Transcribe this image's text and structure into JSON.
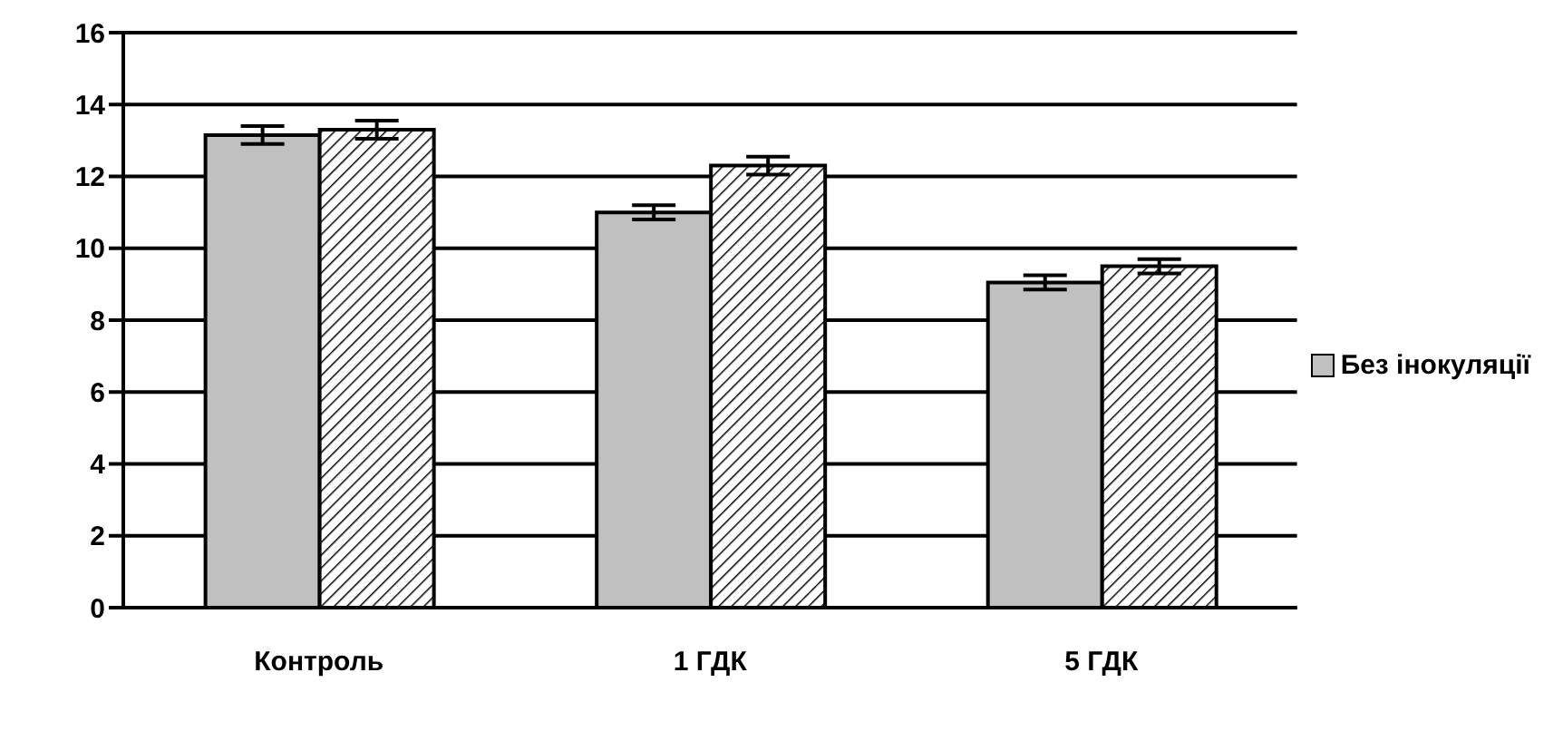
{
  "chart_data": {
    "type": "bar",
    "categories": [
      "Контроль",
      "1 ГДК",
      "5 ГДК"
    ],
    "series": [
      {
        "name": "Без інокуляції",
        "color": "#c0c0c0",
        "values": [
          13.15,
          11.0,
          9.05
        ],
        "errors": [
          0.25,
          0.2,
          0.2
        ]
      },
      {
        "color": "#000000",
        "values": [
          13.3,
          12.3,
          9.5
        ],
        "errors": [
          0.25,
          0.25,
          0.2
        ]
      }
    ],
    "ylim": [
      0,
      16
    ],
    "yticks": [
      0,
      2,
      4,
      6,
      8,
      10,
      12,
      14,
      16
    ],
    "grid": "y",
    "legend": "right"
  }
}
